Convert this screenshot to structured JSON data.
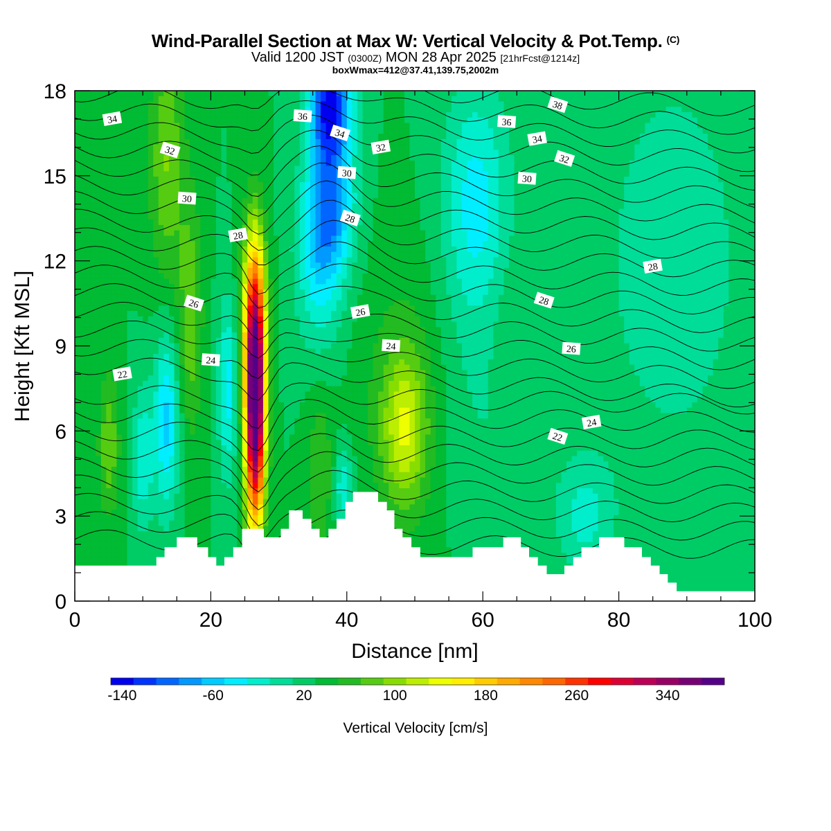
{
  "title": {
    "main": "Wind-Parallel Section at Max W: Vertical Velocity & Pot.Temp.",
    "copyright": "(C)",
    "valid_prefix": "Valid 1200 JST",
    "valid_utc": "(0300Z)",
    "valid_date": "MON 28 Apr 2025",
    "forecast": "[21hrFcst@1214z]",
    "box_info": "boxWmax=412@37.41,139.75,2002m"
  },
  "chart_data": {
    "type": "heatmap",
    "xlabel": "Distance [nm]",
    "ylabel": "Height [Kft MSL]",
    "xlim": [
      0,
      100
    ],
    "ylim": [
      0,
      18
    ],
    "x_ticks": [
      0,
      20,
      40,
      60,
      80,
      100
    ],
    "y_ticks": [
      0,
      3,
      6,
      9,
      12,
      15,
      18
    ],
    "colorbar": {
      "label": "Vertical Velocity [cm/s]",
      "min": -150,
      "max": 390,
      "step": 20,
      "tick_values": [
        -140,
        -60,
        20,
        100,
        180,
        260,
        340
      ],
      "colors": [
        "#0000ee",
        "#0033ff",
        "#0066ff",
        "#0099ff",
        "#00ccff",
        "#00eeff",
        "#00eecc",
        "#00dd99",
        "#00cc66",
        "#00bb33",
        "#22bb22",
        "#55cc11",
        "#88dd00",
        "#bbee00",
        "#eeff00",
        "#ffee00",
        "#ffcc00",
        "#ffaa00",
        "#ff8800",
        "#ff6600",
        "#ff3300",
        "#ff0000",
        "#dd0033",
        "#bb0055",
        "#990066",
        "#770077",
        "#550088"
      ]
    },
    "max_w_feature": {
      "x_nm": 26.5,
      "height_kft": 7.5,
      "value_cm_s": 412
    },
    "isentropes": [
      {
        "label": "22",
        "x": 7,
        "y": 8
      },
      {
        "label": "24",
        "x": 20,
        "y": 8.5
      },
      {
        "label": "26",
        "x": 17.5,
        "y": 10.5
      },
      {
        "label": "28",
        "x": 24,
        "y": 12.9
      },
      {
        "label": "30",
        "x": 16.5,
        "y": 14.2
      },
      {
        "label": "32",
        "x": 14,
        "y": 15.9
      },
      {
        "label": "34",
        "x": 5.5,
        "y": 17.0
      },
      {
        "label": "36",
        "x": 33.5,
        "y": 17.1
      },
      {
        "label": "34",
        "x": 39,
        "y": 16.5
      },
      {
        "label": "32",
        "x": 45,
        "y": 16.0
      },
      {
        "label": "30",
        "x": 40,
        "y": 15.1
      },
      {
        "label": "28",
        "x": 40.5,
        "y": 13.5
      },
      {
        "label": "26",
        "x": 42,
        "y": 10.2
      },
      {
        "label": "24",
        "x": 46.5,
        "y": 9.0
      },
      {
        "label": "22",
        "x": 71,
        "y": 5.8
      },
      {
        "label": "24",
        "x": 76,
        "y": 6.3
      },
      {
        "label": "26",
        "x": 73,
        "y": 8.9
      },
      {
        "label": "28",
        "x": 69,
        "y": 10.6
      },
      {
        "label": "28",
        "x": 85,
        "y": 11.8
      },
      {
        "label": "30",
        "x": 66.5,
        "y": 14.9
      },
      {
        "label": "32",
        "x": 72,
        "y": 15.6
      },
      {
        "label": "34",
        "x": 68,
        "y": 16.3
      },
      {
        "label": "36",
        "x": 63.5,
        "y": 16.9
      },
      {
        "label": "38",
        "x": 71,
        "y": 17.5
      }
    ]
  }
}
